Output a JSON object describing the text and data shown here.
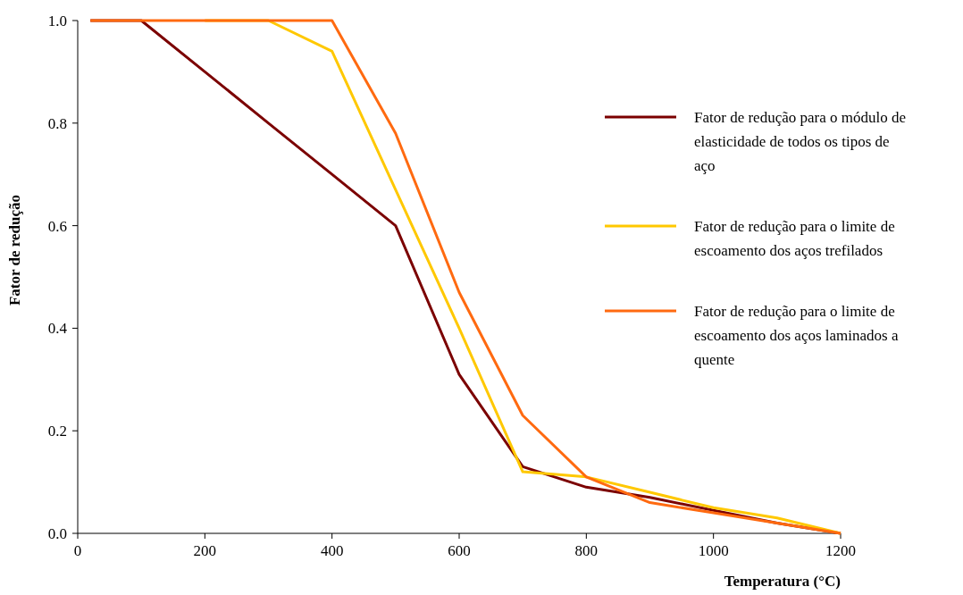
{
  "chart_data": {
    "type": "line",
    "xlabel": "Temperatura (°C)",
    "ylabel": "Fator de redução",
    "x": [
      20,
      100,
      200,
      300,
      400,
      500,
      600,
      700,
      800,
      900,
      1000,
      1100,
      1200
    ],
    "series": [
      {
        "name": "Fator de redução para o módulo de elasticidade de todos os tipos de aço",
        "color": "#7b0000",
        "values": [
          1,
          1,
          0.9,
          0.8,
          0.7,
          0.6,
          0.31,
          0.13,
          0.09,
          0.07,
          0.045,
          0.02,
          0
        ]
      },
      {
        "name": "Fator de redução para o limite de escoamento dos aços trefilados",
        "color": "#ffc800",
        "values": [
          null,
          null,
          1,
          1,
          0.94,
          0.67,
          0.4,
          0.12,
          0.11,
          0.08,
          0.05,
          0.03,
          0
        ]
      },
      {
        "name": "Fator de redução para o limite de escoamento dos aços laminados a quente",
        "color": "#ff6a10",
        "values": [
          1,
          1,
          1,
          1,
          1,
          0.78,
          0.47,
          0.23,
          0.11,
          0.06,
          0.04,
          0.02,
          0
        ]
      }
    ],
    "xlim": [
      0,
      1200
    ],
    "xticks": [
      0,
      200,
      400,
      600,
      800,
      1000,
      1200
    ],
    "ylim": [
      0,
      1
    ],
    "yticks": [
      {
        "value": 0,
        "label": "0.0"
      },
      {
        "value": 0.2,
        "label": "0.2"
      },
      {
        "value": 0.4,
        "label": "0.4"
      },
      {
        "value": 0.6,
        "label": "0.6"
      },
      {
        "value": 0.8,
        "label": "0.8"
      },
      {
        "value": 1,
        "label": "1.0"
      }
    ],
    "grid": false,
    "legend": "right",
    "marker": "none",
    "line_style": "solid"
  }
}
